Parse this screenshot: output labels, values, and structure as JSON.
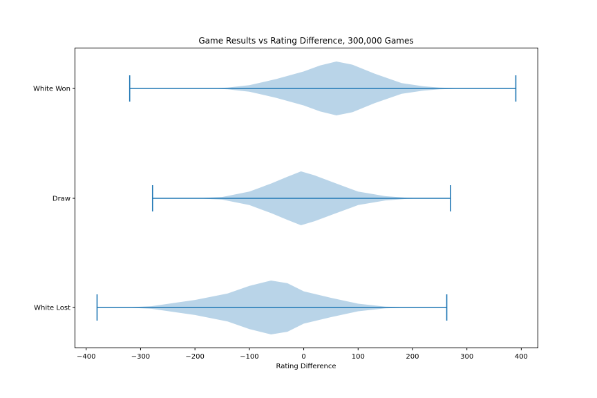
{
  "chart_data": {
    "type": "violin",
    "orientation": "horizontal",
    "title": "Game Results vs Rating Difference, 300,000 Games",
    "xlabel": "Rating Difference",
    "ylabel": "",
    "xlim": [
      -420,
      430
    ],
    "xticks": [
      -400,
      -300,
      -200,
      -100,
      0,
      100,
      200,
      300,
      400
    ],
    "xtick_labels": [
      "−400",
      "−300",
      "−200",
      "−100",
      "0",
      "100",
      "200",
      "300",
      "400"
    ],
    "grid": false,
    "colors": {
      "body": "#b9d4e8",
      "line": "#1f77b4"
    },
    "series": [
      {
        "category": "White Won",
        "min": -320,
        "max": 390,
        "profile": [
          [
            -170,
            0
          ],
          [
            -140,
            0.03
          ],
          [
            -100,
            0.12
          ],
          [
            -50,
            0.35
          ],
          [
            0,
            0.63
          ],
          [
            30,
            0.85
          ],
          [
            60,
            1.0
          ],
          [
            90,
            0.88
          ],
          [
            130,
            0.55
          ],
          [
            180,
            0.2
          ],
          [
            220,
            0.08
          ],
          [
            250,
            0.03
          ],
          [
            300,
            0
          ]
        ]
      },
      {
        "category": "Draw",
        "min": -278,
        "max": 270,
        "profile": [
          [
            -200,
            0
          ],
          [
            -150,
            0.05
          ],
          [
            -100,
            0.25
          ],
          [
            -60,
            0.55
          ],
          [
            -30,
            0.8
          ],
          [
            -5,
            1.0
          ],
          [
            20,
            0.85
          ],
          [
            60,
            0.55
          ],
          [
            100,
            0.25
          ],
          [
            150,
            0.08
          ],
          [
            190,
            0.02
          ],
          [
            230,
            0
          ]
        ]
      },
      {
        "category": "White Lost",
        "min": -380,
        "max": 263,
        "profile": [
          [
            -330,
            0
          ],
          [
            -280,
            0.05
          ],
          [
            -200,
            0.28
          ],
          [
            -140,
            0.52
          ],
          [
            -100,
            0.8
          ],
          [
            -60,
            1.0
          ],
          [
            -30,
            0.9
          ],
          [
            0,
            0.6
          ],
          [
            50,
            0.36
          ],
          [
            100,
            0.14
          ],
          [
            150,
            0.03
          ],
          [
            200,
            0
          ]
        ]
      }
    ]
  }
}
